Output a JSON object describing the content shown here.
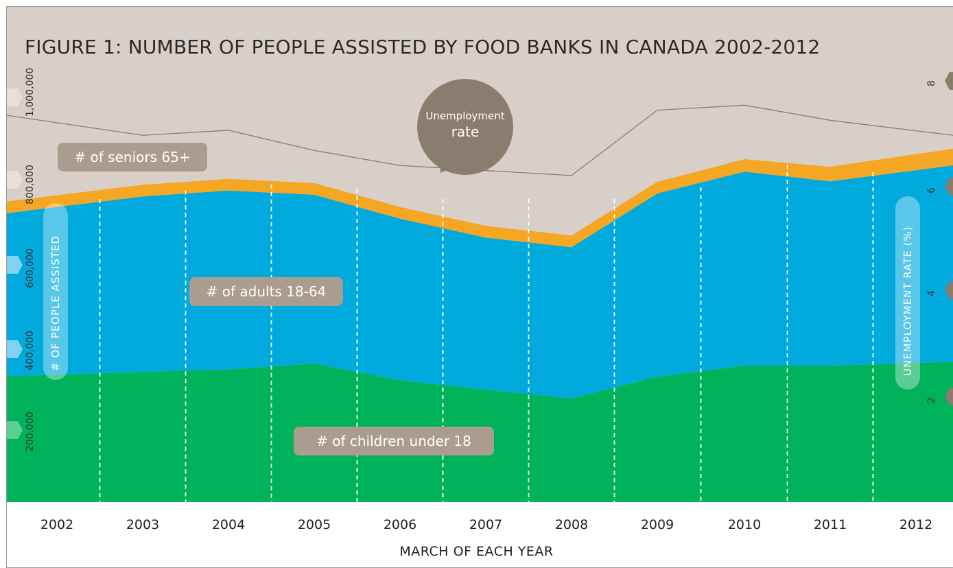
{
  "title": "FIGURE 1: NUMBER OF PEOPLE ASSISTED BY FOOD BANKS IN CANADA 2002-2012",
  "colors": {
    "background": "#d8d0c8",
    "seniors": "#f5a623",
    "adults": "#00aadd",
    "children": "#00b259",
    "unemployment_line": "#8a7d6f",
    "label_box": "#aa9d8f"
  },
  "chart_data": {
    "type": "area",
    "categories": [
      "2002",
      "2003",
      "2004",
      "2005",
      "2006",
      "2007",
      "2008",
      "2009",
      "2010",
      "2011",
      "2012"
    ],
    "xlabel": "MARCH OF EACH YEAR",
    "ylabel": "# OF PEOPLE ASSISTED",
    "ylabel_right": "UNEMPLOYMENT RATE (%)",
    "y_ticks": [
      "200,000",
      "400,000",
      "600,000",
      "800,000",
      "1,000,000"
    ],
    "y_right_ticks": [
      "2",
      "4",
      "6",
      "8"
    ],
    "ylim": [
      0,
      1100000
    ],
    "ylim_right": [
      0,
      9
    ],
    "stacked": true,
    "series": [
      {
        "name": "# of children under 18",
        "values": [
          300000,
          310000,
          316000,
          330000,
          290000,
          268000,
          247000,
          299000,
          325000,
          325000,
          334000
        ]
      },
      {
        "name": "# of adults 18-64",
        "values": [
          388000,
          418000,
          426000,
          402000,
          385000,
          362000,
          360000,
          436000,
          462000,
          439000,
          468000
        ]
      },
      {
        "name": "# of seniors 65+",
        "values": [
          28000,
          28000,
          28000,
          28000,
          28000,
          28000,
          28000,
          28000,
          30000,
          35000,
          40000
        ]
      }
    ],
    "line_series": {
      "name": "Unemployment rate",
      "values": [
        7.7,
        7.3,
        7.4,
        7.0,
        6.7,
        6.6,
        6.5,
        7.8,
        7.9,
        7.6,
        7.3
      ]
    },
    "annotations": {
      "seniors": "# of seniors 65+",
      "adults": "# of adults 18-64",
      "children": "# of children under 18",
      "bubble_top": "Unemployment",
      "bubble_bottom": "rate"
    }
  }
}
